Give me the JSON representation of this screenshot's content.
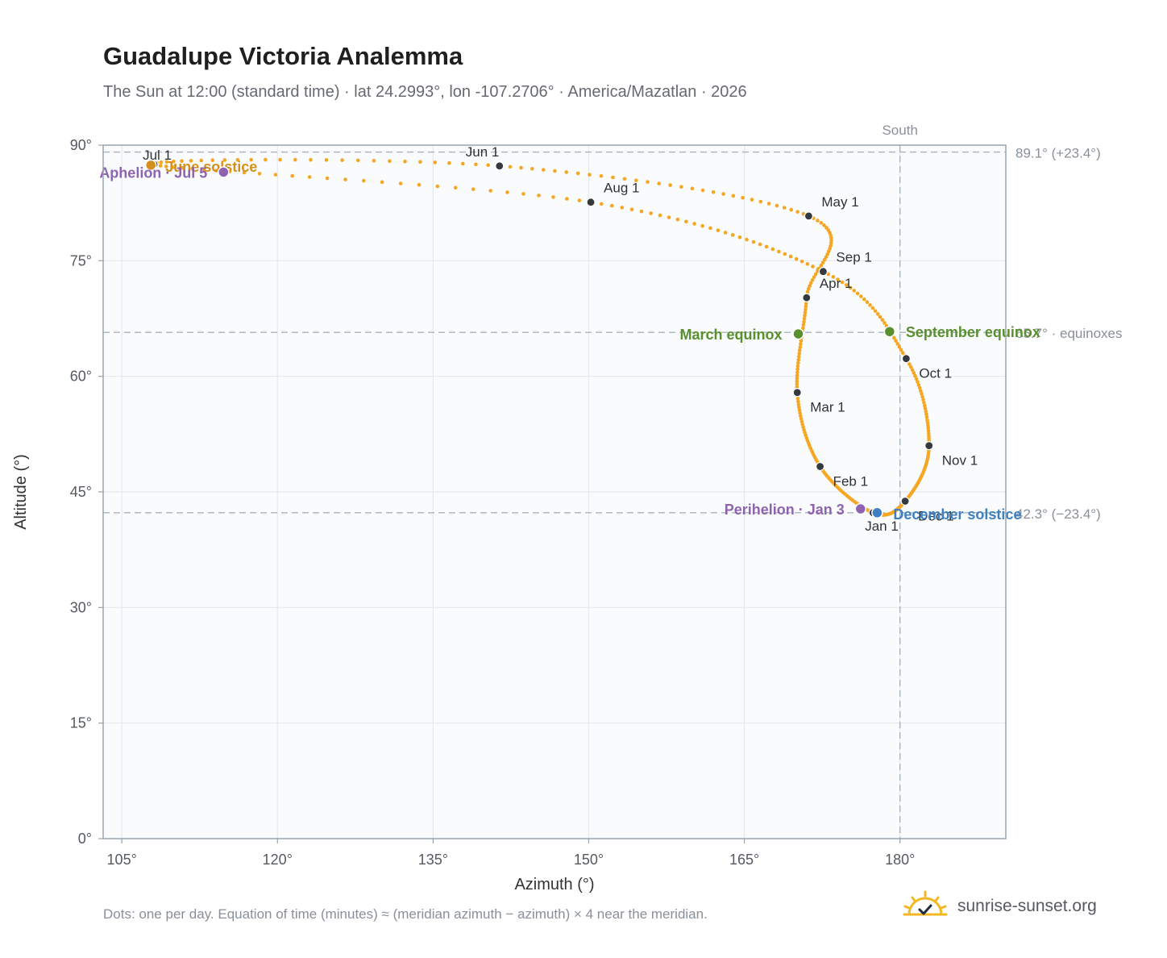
{
  "title": "Guadalupe Victoria Analemma",
  "subtitle": "The Sun at 12:00 (standard time) · lat 24.2993°, lon -107.2706° · America/Mazatlan · 2026",
  "footnote": "Dots: one per day. Equation of time (minutes) ≈ (meridian azimuth − azimuth) × 4 near the meridian.",
  "brand": {
    "name": "sunrise-sunset.org",
    "icon": "sun-check-icon",
    "color": "#f2b824"
  },
  "colors": {
    "curve": "#f5a623",
    "month": "#343a40",
    "equinox": "#5a8f2e",
    "june": "#d4901a",
    "december": "#3e7fc1",
    "apsis": "#8e63b0",
    "refline": "#a9b3bd",
    "plot_bg": "#f9fbfd",
    "frame": "#9aa5b1"
  },
  "chart_data": {
    "type": "scatter",
    "title": "Guadalupe Victoria Analemma",
    "xlabel": "Azimuth (°)",
    "ylabel": "Altitude (°)",
    "xlim": [
      103.2,
      190.2
    ],
    "ylim": [
      0,
      90
    ],
    "xticks": [
      105,
      120,
      135,
      150,
      165,
      180
    ],
    "xtick_labels": [
      "105°",
      "120°",
      "135°",
      "150°",
      "165°",
      "180°"
    ],
    "yticks": [
      0,
      15,
      30,
      45,
      60,
      75,
      90
    ],
    "ytick_labels": [
      "0°",
      "15°",
      "30°",
      "45°",
      "60°",
      "75°",
      "90°"
    ],
    "grid": true,
    "south_label": "South",
    "south_azimuth": 180,
    "reference_lines": [
      {
        "altitude": 89.1,
        "label": "89.1° (+23.4°)"
      },
      {
        "altitude": 65.7,
        "label": "65.7° · equinoxes"
      },
      {
        "altitude": 42.3,
        "label": "42.3° (−23.4°)"
      }
    ],
    "months": [
      {
        "label": "Jan 1",
        "az": 177.4,
        "alt": 42.3
      },
      {
        "label": "Feb 1",
        "az": 172.3,
        "alt": 48.3
      },
      {
        "label": "Mar 1",
        "az": 170.1,
        "alt": 57.9
      },
      {
        "label": "Apr 1",
        "az": 171.0,
        "alt": 70.2
      },
      {
        "label": "May 1",
        "az": 171.2,
        "alt": 80.8
      },
      {
        "label": "Jun 1",
        "az": 141.4,
        "alt": 87.3
      },
      {
        "label": "Jul 1",
        "az": 108.1,
        "alt": 87.5
      },
      {
        "label": "Aug 1",
        "az": 150.2,
        "alt": 82.6
      },
      {
        "label": "Sep 1",
        "az": 172.6,
        "alt": 73.6
      },
      {
        "label": "Oct 1",
        "az": 180.6,
        "alt": 62.3
      },
      {
        "label": "Nov 1",
        "az": 182.8,
        "alt": 51.0
      },
      {
        "label": "Dec 1",
        "az": 180.5,
        "alt": 43.8
      }
    ],
    "events": [
      {
        "label": "March equinox",
        "az": 170.2,
        "alt": 65.5,
        "kind": "equinox"
      },
      {
        "label": "September equinox",
        "az": 179.0,
        "alt": 65.8,
        "kind": "equinox"
      },
      {
        "label": "June solstice",
        "az": 107.8,
        "alt": 87.4,
        "kind": "june"
      },
      {
        "label": "December solstice",
        "az": 177.8,
        "alt": 42.3,
        "kind": "december"
      },
      {
        "label": "Perihelion · Jan 3",
        "az": 176.2,
        "alt": 42.8,
        "kind": "apsis"
      },
      {
        "label": "Aphelion · Jul 5",
        "az": 114.8,
        "alt": 86.5,
        "kind": "apsis"
      }
    ]
  }
}
